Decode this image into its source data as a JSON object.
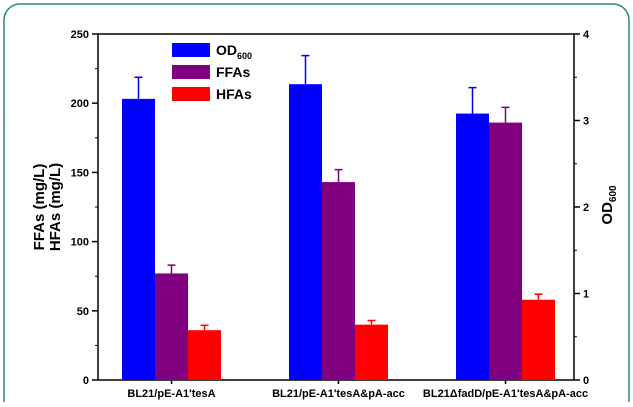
{
  "chart_data": {
    "type": "bar",
    "categories": [
      "BL21/pE-A1'tesA",
      "BL21/pE-A1'tesA&pA-acc",
      "BL21ΔfadD/pE-A1'tesA&pA-acc"
    ],
    "series": [
      {
        "name": "OD",
        "name_sub": "600",
        "axis": "right",
        "color": "#0000ff",
        "values": [
          3.25,
          3.42,
          3.08
        ],
        "errors": [
          0.25,
          0.33,
          0.3
        ]
      },
      {
        "name": "FFAs",
        "axis": "left",
        "color": "#800080",
        "values": [
          77,
          143,
          186
        ],
        "errors": [
          6,
          9,
          11
        ]
      },
      {
        "name": "HFAs",
        "axis": "left",
        "color": "#ff0000",
        "values": [
          36,
          40,
          58
        ],
        "errors": [
          3.5,
          3,
          4
        ]
      }
    ],
    "y_left": {
      "label_line1": "FFAs (mg/L)",
      "label_line2": "HFAs (mg/L)",
      "ylim": [
        0,
        250
      ],
      "ticks": [
        "0",
        "50",
        "100",
        "150",
        "200",
        "250"
      ]
    },
    "y_right": {
      "label": "OD",
      "label_sub": "600",
      "ylim": [
        0,
        4
      ],
      "ticks": [
        "0",
        "1",
        "2",
        "3",
        "4"
      ]
    },
    "legend": "top-left",
    "grid": false
  }
}
